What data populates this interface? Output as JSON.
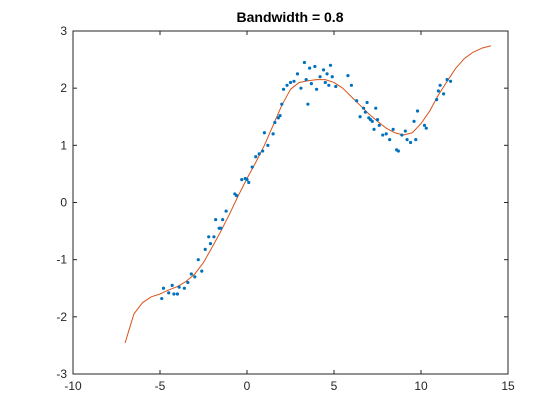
{
  "chart_data": {
    "type": "scatter",
    "title": "Bandwidth = 0.8",
    "xlabel": "",
    "ylabel": "",
    "xlim": [
      -10,
      15
    ],
    "ylim": [
      -3,
      3
    ],
    "xticks": [
      -10,
      -5,
      0,
      5,
      10,
      15
    ],
    "yticks": [
      -3,
      -2,
      -1,
      0,
      1,
      2,
      3
    ],
    "xtick_labels": [
      "-10",
      "-5",
      "0",
      "5",
      "10",
      "15"
    ],
    "ytick_labels": [
      "-3",
      "-2",
      "-1",
      "0",
      "1",
      "2",
      "3"
    ],
    "grid": false,
    "legend": "none",
    "series": [
      {
        "kind": "scatter",
        "color": "#0072BD",
        "points": [
          [
            -4.9,
            -1.68
          ],
          [
            -4.8,
            -1.5
          ],
          [
            -4.5,
            -1.58
          ],
          [
            -4.3,
            -1.45
          ],
          [
            -4.2,
            -1.6
          ],
          [
            -4.0,
            -1.6
          ],
          [
            -3.9,
            -1.48
          ],
          [
            -3.6,
            -1.5
          ],
          [
            -3.4,
            -1.4
          ],
          [
            -3.2,
            -1.25
          ],
          [
            -3.0,
            -1.3
          ],
          [
            -2.8,
            -1.0
          ],
          [
            -2.6,
            -1.2
          ],
          [
            -2.4,
            -0.82
          ],
          [
            -2.2,
            -0.6
          ],
          [
            -2.1,
            -0.72
          ],
          [
            -1.9,
            -0.6
          ],
          [
            -1.8,
            -0.3
          ],
          [
            -1.6,
            -0.45
          ],
          [
            -1.5,
            -0.45
          ],
          [
            -1.4,
            -0.3
          ],
          [
            -1.2,
            -0.15
          ],
          [
            -0.7,
            0.15
          ],
          [
            -0.6,
            0.12
          ],
          [
            -0.3,
            0.4
          ],
          [
            -0.1,
            0.42
          ],
          [
            0.0,
            0.4
          ],
          [
            0.1,
            0.35
          ],
          [
            0.3,
            0.62
          ],
          [
            0.5,
            0.8
          ],
          [
            0.7,
            0.85
          ],
          [
            0.9,
            0.9
          ],
          [
            1.0,
            1.22
          ],
          [
            1.2,
            1.0
          ],
          [
            1.5,
            1.2
          ],
          [
            1.6,
            1.4
          ],
          [
            1.8,
            1.48
          ],
          [
            1.9,
            1.52
          ],
          [
            2.0,
            1.72
          ],
          [
            2.1,
            1.98
          ],
          [
            2.3,
            2.05
          ],
          [
            2.5,
            2.1
          ],
          [
            2.7,
            2.12
          ],
          [
            2.9,
            2.25
          ],
          [
            3.1,
            2.0
          ],
          [
            3.3,
            2.45
          ],
          [
            3.4,
            2.15
          ],
          [
            3.5,
            1.72
          ],
          [
            3.6,
            2.35
          ],
          [
            3.7,
            2.08
          ],
          [
            3.9,
            2.38
          ],
          [
            4.0,
            1.98
          ],
          [
            4.2,
            2.2
          ],
          [
            4.4,
            2.32
          ],
          [
            4.5,
            2.1
          ],
          [
            4.6,
            2.25
          ],
          [
            4.7,
            2.05
          ],
          [
            4.8,
            2.4
          ],
          [
            4.9,
            2.2
          ],
          [
            5.1,
            2.03
          ],
          [
            5.8,
            2.22
          ],
          [
            6.0,
            2.05
          ],
          [
            6.3,
            1.78
          ],
          [
            6.5,
            1.5
          ],
          [
            6.7,
            1.65
          ],
          [
            6.8,
            1.58
          ],
          [
            6.9,
            1.75
          ],
          [
            7.0,
            1.48
          ],
          [
            7.1,
            1.45
          ],
          [
            7.2,
            1.42
          ],
          [
            7.3,
            1.28
          ],
          [
            7.4,
            1.65
          ],
          [
            7.5,
            1.45
          ],
          [
            7.6,
            1.35
          ],
          [
            7.8,
            1.18
          ],
          [
            8.0,
            1.2
          ],
          [
            8.2,
            1.1
          ],
          [
            8.4,
            1.28
          ],
          [
            8.6,
            0.92
          ],
          [
            8.7,
            0.9
          ],
          [
            8.9,
            1.18
          ],
          [
            9.1,
            1.25
          ],
          [
            9.2,
            1.1
          ],
          [
            9.4,
            1.05
          ],
          [
            9.6,
            1.42
          ],
          [
            9.7,
            1.1
          ],
          [
            9.8,
            1.6
          ],
          [
            10.2,
            1.35
          ],
          [
            10.3,
            1.3
          ],
          [
            10.9,
            1.8
          ],
          [
            11.0,
            1.95
          ],
          [
            11.1,
            2.05
          ],
          [
            11.3,
            1.9
          ],
          [
            11.5,
            2.15
          ],
          [
            11.7,
            2.12
          ]
        ]
      },
      {
        "kind": "line",
        "color": "#D95319",
        "points": [
          [
            -7.0,
            -2.45
          ],
          [
            -6.5,
            -1.95
          ],
          [
            -6.0,
            -1.75
          ],
          [
            -5.5,
            -1.65
          ],
          [
            -5.0,
            -1.6
          ],
          [
            -4.5,
            -1.53
          ],
          [
            -4.0,
            -1.47
          ],
          [
            -3.5,
            -1.38
          ],
          [
            -3.0,
            -1.25
          ],
          [
            -2.5,
            -1.05
          ],
          [
            -2.0,
            -0.78
          ],
          [
            -1.5,
            -0.5
          ],
          [
            -1.0,
            -0.2
          ],
          [
            -0.5,
            0.12
          ],
          [
            0.0,
            0.42
          ],
          [
            0.5,
            0.7
          ],
          [
            1.0,
            1.0
          ],
          [
            1.5,
            1.35
          ],
          [
            2.0,
            1.7
          ],
          [
            2.5,
            1.98
          ],
          [
            3.0,
            2.1
          ],
          [
            3.5,
            2.13
          ],
          [
            4.0,
            2.15
          ],
          [
            4.5,
            2.15
          ],
          [
            5.0,
            2.1
          ],
          [
            5.5,
            2.0
          ],
          [
            6.0,
            1.85
          ],
          [
            6.5,
            1.7
          ],
          [
            7.0,
            1.55
          ],
          [
            7.5,
            1.42
          ],
          [
            8.0,
            1.3
          ],
          [
            8.5,
            1.22
          ],
          [
            9.0,
            1.18
          ],
          [
            9.5,
            1.22
          ],
          [
            10.0,
            1.38
          ],
          [
            10.5,
            1.6
          ],
          [
            11.0,
            1.88
          ],
          [
            11.5,
            2.12
          ],
          [
            12.0,
            2.35
          ],
          [
            12.5,
            2.52
          ],
          [
            13.0,
            2.63
          ],
          [
            13.5,
            2.7
          ],
          [
            14.0,
            2.74
          ]
        ]
      }
    ]
  }
}
